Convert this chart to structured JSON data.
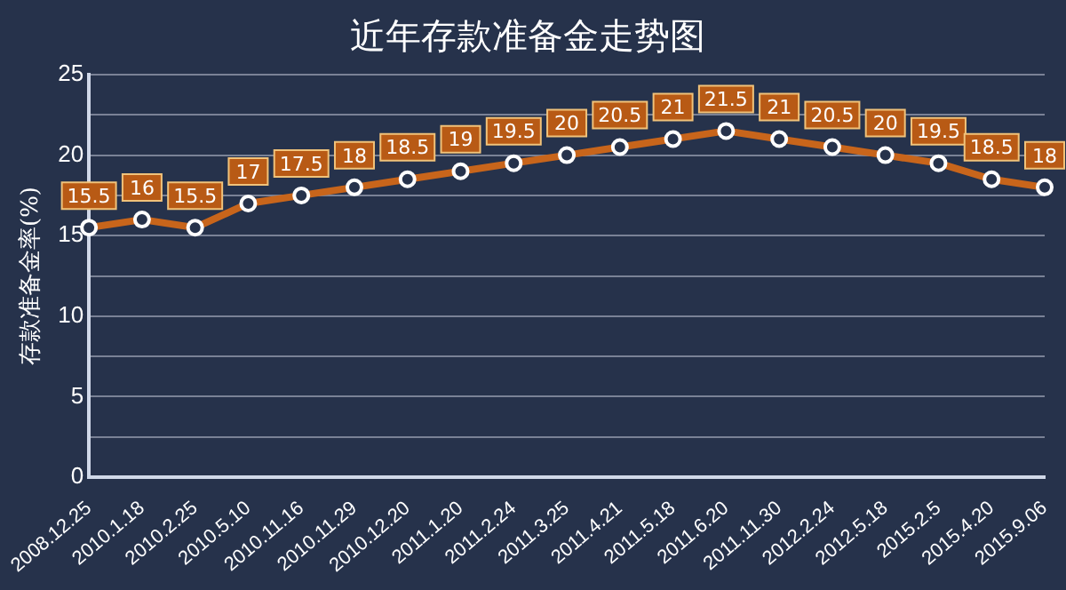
{
  "chart_data": {
    "type": "line",
    "title": "近年存款准备金走势图",
    "ylabel": "存款准备金率(%)",
    "categories": [
      "2008.12.25",
      "2010.1.18",
      "2010.2.25",
      "2010.5.10",
      "2010.11.16",
      "2010.11.29",
      "2010.12.20",
      "2011.1.20",
      "2011.2.24",
      "2011.3.25",
      "2011.4.21",
      "2011.5.18",
      "2011.6.20",
      "2011.11.30",
      "2012.2.24",
      "2012.5.18",
      "2015.2.5",
      "2015.4.20",
      "2015.9.06"
    ],
    "series": [
      {
        "color": "#c8651b",
        "values": [
          15.5,
          16,
          15.5,
          17,
          17.5,
          18,
          18.5,
          19,
          19.5,
          20,
          20.5,
          21,
          21.5,
          21,
          20.5,
          20,
          19.5,
          18.5,
          18
        ]
      }
    ],
    "ylim": [
      0,
      25
    ],
    "yticks": [
      0,
      {
        "value": 2.5,
        "label": null
      },
      5,
      {
        "value": 7.5,
        "label": null
      },
      10,
      {
        "value": 12.5,
        "label": null
      },
      15,
      {
        "value": 17.5,
        "label": null
      },
      20,
      {
        "value": 22.5,
        "label": null
      },
      25
    ],
    "grid": "y",
    "marker": "circle",
    "data_labels": true,
    "legend": false
  }
}
